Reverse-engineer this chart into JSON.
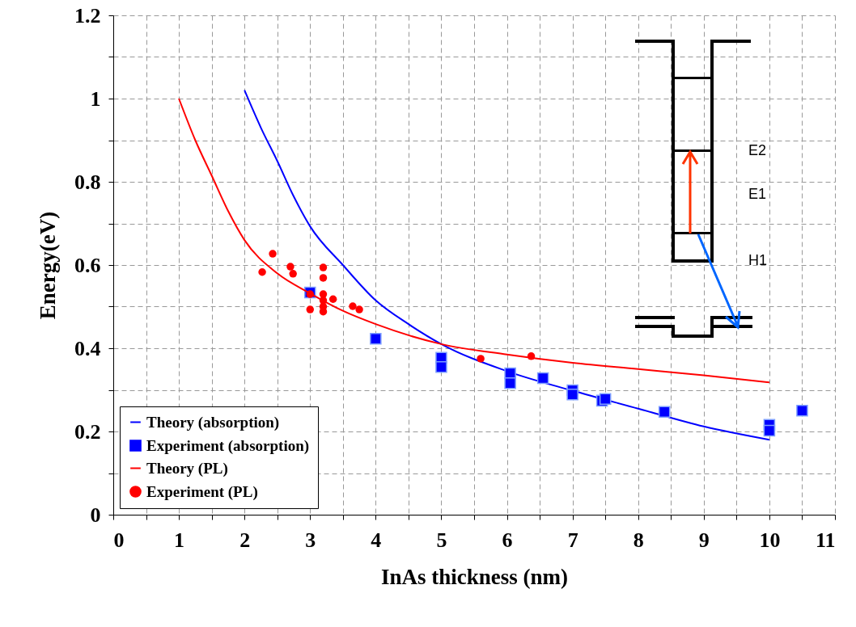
{
  "chart_data": {
    "type": "scatter",
    "xlabel": "InAs thickness (nm)",
    "ylabel": "Energy(eV)",
    "xlim": [
      0,
      11
    ],
    "ylim": [
      0,
      1.2
    ],
    "xticks": [
      0,
      {
        "value": 0.5,
        "label": null
      },
      1,
      {
        "value": 1.5,
        "label": null
      },
      2,
      {
        "value": 2.5,
        "label": null
      },
      3,
      {
        "value": 3.5,
        "label": null
      },
      4,
      {
        "value": 4.5,
        "label": null
      },
      5,
      {
        "value": 5.5,
        "label": null
      },
      6,
      {
        "value": 6.5,
        "label": null
      },
      7,
      {
        "value": 7.5,
        "label": null
      },
      8,
      {
        "value": 8.5,
        "label": null
      },
      9,
      {
        "value": 9.5,
        "label": null
      },
      10,
      {
        "value": 10.5,
        "label": null
      },
      11
    ],
    "yticks": [
      0,
      {
        "value": 0.1,
        "label": null
      },
      0.2,
      {
        "value": 0.3,
        "label": null
      },
      0.4,
      {
        "value": 0.5,
        "label": null
      },
      0.6,
      {
        "value": 0.7,
        "label": null
      },
      0.8,
      {
        "value": 0.9,
        "label": null
      },
      1,
      {
        "value": 1.1,
        "label": null
      },
      1.2
    ],
    "grid": true,
    "legend": "bottom left",
    "annotations": [
      "E2",
      "E1",
      "H1"
    ],
    "series": [
      {
        "name": "Theory (absorption)",
        "type": "line",
        "color": "#0000ff",
        "marker": "none",
        "x": [
          2,
          2.25,
          2.5,
          2.75,
          3,
          3.5,
          4,
          4.5,
          5,
          6,
          7,
          8,
          9,
          10
        ],
        "values": [
          1.02,
          0.93,
          0.85,
          0.765,
          0.693,
          0.6,
          0.515,
          0.458,
          0.41,
          0.345,
          0.298,
          0.255,
          0.212,
          0.18
        ]
      },
      {
        "name": "Experiment (absorption)",
        "color": "#0000ff",
        "marker": "square",
        "x": [
          3,
          4,
          5,
          5,
          6.05,
          6.05,
          6.55,
          7,
          7,
          7.45,
          7.5,
          8.4,
          10,
          10,
          10.5
        ],
        "values": [
          0.534,
          0.423,
          0.377,
          0.355,
          0.34,
          0.316,
          0.328,
          0.299,
          0.289,
          0.274,
          0.278,
          0.247,
          0.216,
          0.202,
          0.25
        ]
      },
      {
        "name": "Theory (PL)",
        "type": "line",
        "color": "#ff0000",
        "marker": "none",
        "x": [
          1,
          1.25,
          1.5,
          1.75,
          2,
          2.5,
          3,
          3.5,
          4,
          5,
          6,
          7,
          8,
          9,
          10
        ],
        "values": [
          1.0,
          0.9,
          0.815,
          0.73,
          0.66,
          0.58,
          0.532,
          0.49,
          0.458,
          0.41,
          0.385,
          0.365,
          0.35,
          0.335,
          0.318
        ]
      },
      {
        "name": "Experiment (PL)",
        "color": "#ff0000",
        "marker": "circle",
        "x": [
          2.27,
          2.43,
          2.7,
          2.74,
          3,
          3,
          3.2,
          3.2,
          3.2,
          3.2,
          3.2,
          3.2,
          3.35,
          3.65,
          3.75,
          5.6,
          6.37
        ],
        "values": [
          0.583,
          0.627,
          0.596,
          0.579,
          0.53,
          0.493,
          0.594,
          0.569,
          0.53,
          0.515,
          0.5,
          0.488,
          0.518,
          0.501,
          0.493,
          0.375,
          0.381
        ]
      }
    ]
  }
}
